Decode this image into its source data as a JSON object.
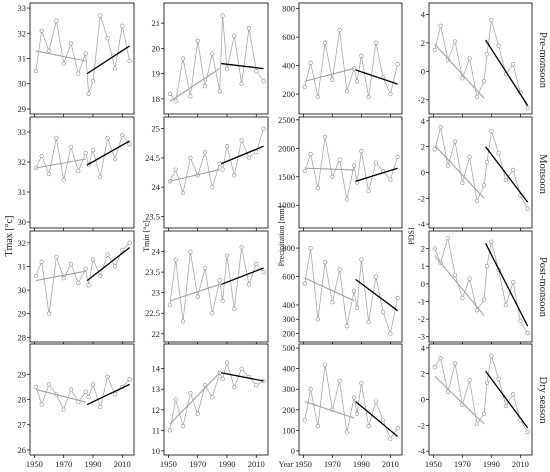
{
  "figure": {
    "x_axis_title": "Year",
    "y_axis_titles": [
      "Tmax [°c]",
      "Tmin [°c]",
      "Precipitation [mm]",
      "PDSI"
    ],
    "row_labels": [
      "Pre-monsoon",
      "Monsoon",
      "Post-monsoon",
      "Dry season"
    ],
    "x_ticks": [
      "1950",
      "1970",
      "1990",
      "2010"
    ]
  },
  "chart_data": [
    {
      "type": "line",
      "variable": "Tmax",
      "season": "Pre-monsoon",
      "x": [
        1951,
        1955,
        1960,
        1965,
        1970,
        1975,
        1980,
        1985,
        1987,
        1990,
        1995,
        2000,
        2005,
        2010,
        2015
      ],
      "y": [
        30.5,
        32.1,
        31.3,
        32.5,
        30.8,
        31.6,
        30.4,
        31.2,
        29.6,
        30.1,
        32.7,
        31.8,
        30.6,
        32.3,
        30.9
      ],
      "ylim": [
        28.8,
        33.2
      ],
      "yticks": [
        29,
        30,
        31,
        32,
        33
      ],
      "trend_pre": [
        [
          1951,
          31.3
        ],
        [
          1985,
          30.9
        ]
      ],
      "trend_post": [
        [
          1986,
          30.4
        ],
        [
          2015,
          31.5
        ]
      ],
      "ylabel": ""
    },
    {
      "type": "line",
      "variable": "Tmin",
      "season": "Pre-monsoon",
      "x": [
        1951,
        1955,
        1960,
        1965,
        1970,
        1975,
        1980,
        1985,
        1987,
        1990,
        1995,
        2000,
        2005,
        2010,
        2015
      ],
      "y": [
        18.2,
        17.9,
        19.6,
        18.1,
        20.3,
        18.5,
        19.8,
        18.3,
        21.3,
        19.2,
        20.5,
        18.6,
        20.8,
        19.1,
        18.7
      ],
      "ylim": [
        17.4,
        21.8
      ],
      "yticks": [
        18,
        19,
        20,
        21
      ],
      "trend_pre": [
        [
          1951,
          17.9
        ],
        [
          1985,
          19.2
        ]
      ],
      "trend_post": [
        [
          1986,
          19.4
        ],
        [
          2015,
          19.2
        ]
      ],
      "ylabel": ""
    },
    {
      "type": "line",
      "variable": "Precipitation",
      "season": "Pre-monsoon",
      "x": [
        1951,
        1955,
        1960,
        1965,
        1970,
        1975,
        1980,
        1985,
        1987,
        1990,
        1995,
        2000,
        2005,
        2010,
        2015
      ],
      "y": [
        250,
        420,
        180,
        560,
        300,
        650,
        220,
        380,
        290,
        470,
        180,
        560,
        320,
        200,
        410
      ],
      "ylim": [
        60,
        840
      ],
      "yticks": [
        200,
        400,
        600,
        800
      ],
      "trend_pre": [
        [
          1951,
          290
        ],
        [
          1985,
          380
        ]
      ],
      "trend_post": [
        [
          1986,
          370
        ],
        [
          2015,
          270
        ]
      ],
      "ylabel": ""
    },
    {
      "type": "line",
      "variable": "PDSI",
      "season": "Pre-monsoon",
      "x": [
        1951,
        1955,
        1960,
        1965,
        1970,
        1975,
        1980,
        1985,
        1987,
        1990,
        1995,
        2000,
        2005,
        2010,
        2015
      ],
      "y": [
        1.5,
        3.2,
        0.8,
        2.1,
        -0.5,
        0.9,
        -1.8,
        -0.7,
        1.2,
        3.6,
        1.8,
        -0.2,
        0.5,
        -1.5,
        -2.6
      ],
      "ylim": [
        -3.0,
        4.8
      ],
      "yticks": [
        -2,
        0,
        2,
        4
      ],
      "trend_pre": [
        [
          1951,
          1.9
        ],
        [
          1985,
          -1.9
        ]
      ],
      "trend_post": [
        [
          1986,
          2.2
        ],
        [
          2015,
          -2.4
        ]
      ],
      "ylabel": ""
    },
    {
      "type": "line",
      "variable": "Tmax",
      "season": "Monsoon",
      "x": [
        1951,
        1955,
        1960,
        1965,
        1970,
        1975,
        1980,
        1985,
        1987,
        1990,
        1995,
        2000,
        2005,
        2010,
        2015
      ],
      "y": [
        31.8,
        32.2,
        31.6,
        32.8,
        31.4,
        32.5,
        31.7,
        32.3,
        31.9,
        32.4,
        31.5,
        32.8,
        32.1,
        32.9,
        32.6
      ],
      "ylim": [
        29.8,
        33.5
      ],
      "yticks": [
        30,
        31,
        32,
        33
      ],
      "trend_pre": [
        [
          1951,
          31.8
        ],
        [
          1985,
          32.1
        ]
      ],
      "trend_post": [
        [
          1986,
          31.9
        ],
        [
          2015,
          32.7
        ]
      ],
      "ylabel": ""
    },
    {
      "type": "line",
      "variable": "Tmin",
      "season": "Monsoon",
      "x": [
        1951,
        1955,
        1960,
        1965,
        1970,
        1975,
        1980,
        1985,
        1987,
        1990,
        1995,
        2000,
        2005,
        2010,
        2015
      ],
      "y": [
        24.1,
        24.3,
        23.9,
        24.5,
        24.2,
        24.6,
        24.0,
        24.4,
        24.3,
        24.7,
        24.2,
        24.8,
        24.5,
        24.6,
        25.0
      ],
      "ylim": [
        23.3,
        25.2
      ],
      "yticks": [
        23.5,
        24.0,
        24.5,
        25.0
      ],
      "trend_pre": [
        [
          1951,
          24.1
        ],
        [
          1985,
          24.3
        ]
      ],
      "trend_post": [
        [
          1986,
          24.4
        ],
        [
          2015,
          24.7
        ]
      ],
      "ylabel": ""
    },
    {
      "type": "line",
      "variable": "Precipitation",
      "season": "Monsoon",
      "x": [
        1951,
        1955,
        1960,
        1965,
        1970,
        1975,
        1980,
        1985,
        1987,
        1990,
        1995,
        2000,
        2005,
        2010,
        2015
      ],
      "y": [
        1600,
        1900,
        1300,
        2200,
        1500,
        1800,
        1100,
        1700,
        1400,
        1950,
        1250,
        1750,
        1600,
        1450,
        1850
      ],
      "ylim": [
        600,
        2550
      ],
      "yticks": [
        1000,
        1500,
        2000,
        2500
      ],
      "trend_pre": [
        [
          1951,
          1650
        ],
        [
          1985,
          1620
        ]
      ],
      "trend_post": [
        [
          1986,
          1420
        ],
        [
          2015,
          1650
        ]
      ],
      "ylabel": ""
    },
    {
      "type": "line",
      "variable": "PDSI",
      "season": "Monsoon",
      "x": [
        1951,
        1955,
        1960,
        1965,
        1970,
        1975,
        1980,
        1985,
        1987,
        1990,
        1995,
        2000,
        2005,
        2010,
        2015
      ],
      "y": [
        1.8,
        3.5,
        0.5,
        2.4,
        -0.8,
        1.2,
        -2.2,
        -1.0,
        0.8,
        3.2,
        1.5,
        -0.6,
        0.2,
        -1.8,
        -2.8
      ],
      "ylim": [
        -4.3,
        4.3
      ],
      "yticks": [
        -4,
        -2,
        0,
        2,
        4
      ],
      "trend_pre": [
        [
          1951,
          2.1
        ],
        [
          1985,
          -2.0
        ]
      ],
      "trend_post": [
        [
          1986,
          2.0
        ],
        [
          2015,
          -2.3
        ]
      ],
      "ylabel": ""
    },
    {
      "type": "line",
      "variable": "Tmax",
      "season": "Post-monsoon",
      "x": [
        1951,
        1955,
        1960,
        1965,
        1970,
        1975,
        1980,
        1985,
        1987,
        1990,
        1995,
        2000,
        2005,
        2010,
        2015
      ],
      "y": [
        30.6,
        31.2,
        29.0,
        31.4,
        30.5,
        31.1,
        30.3,
        30.9,
        30.2,
        31.3,
        30.6,
        31.5,
        31.0,
        31.7,
        32.0
      ],
      "ylim": [
        27.8,
        32.5
      ],
      "yticks": [
        28,
        29,
        30,
        31,
        32
      ],
      "trend_pre": [
        [
          1951,
          30.4
        ],
        [
          1985,
          30.8
        ]
      ],
      "trend_post": [
        [
          1986,
          30.4
        ],
        [
          2015,
          31.8
        ]
      ],
      "ylabel": ""
    },
    {
      "type": "line",
      "variable": "Tmin",
      "season": "Post-monsoon",
      "x": [
        1951,
        1955,
        1960,
        1965,
        1970,
        1975,
        1980,
        1985,
        1987,
        1990,
        1995,
        2000,
        2005,
        2010,
        2015
      ],
      "y": [
        22.7,
        23.8,
        22.3,
        24.0,
        22.9,
        23.6,
        22.5,
        23.3,
        22.8,
        23.9,
        22.6,
        24.1,
        23.2,
        23.7,
        23.5
      ],
      "ylim": [
        21.8,
        24.5
      ],
      "yticks": [
        22.0,
        22.5,
        23.0,
        23.5,
        24.0
      ],
      "trend_pre": [
        [
          1951,
          22.8
        ],
        [
          1985,
          23.2
        ]
      ],
      "trend_post": [
        [
          1986,
          23.2
        ],
        [
          2015,
          23.6
        ]
      ],
      "ylabel": ""
    },
    {
      "type": "line",
      "variable": "Precipitation",
      "season": "Post-monsoon",
      "x": [
        1951,
        1955,
        1960,
        1965,
        1970,
        1975,
        1980,
        1985,
        1987,
        1990,
        1995,
        2000,
        2005,
        2010,
        2015
      ],
      "y": [
        550,
        800,
        300,
        700,
        420,
        650,
        250,
        500,
        380,
        720,
        280,
        600,
        350,
        200,
        450
      ],
      "ylim": [
        140,
        920
      ],
      "yticks": [
        200,
        300,
        400,
        600,
        800
      ],
      "trend_pre": [
        [
          1951,
          590
        ],
        [
          1985,
          430
        ]
      ],
      "trend_post": [
        [
          1986,
          580
        ],
        [
          2015,
          360
        ]
      ],
      "ylabel": ""
    },
    {
      "type": "line",
      "variable": "PDSI",
      "season": "Post-monsoon",
      "x": [
        1951,
        1955,
        1960,
        1965,
        1970,
        1975,
        1980,
        1985,
        1987,
        1990,
        1995,
        2000,
        2005,
        2010,
        2015
      ],
      "y": [
        2.0,
        1.2,
        2.6,
        0.5,
        -0.8,
        0.3,
        -1.5,
        -0.9,
        1.0,
        2.4,
        0.8,
        -1.2,
        0.1,
        -2.1,
        -2.8
      ],
      "ylim": [
        -3.3,
        3.0
      ],
      "yticks": [
        -3,
        -2,
        -1,
        0,
        1,
        2
      ],
      "trend_pre": [
        [
          1951,
          1.6
        ],
        [
          1985,
          -1.8
        ]
      ],
      "trend_post": [
        [
          1986,
          2.3
        ],
        [
          2015,
          -2.4
        ]
      ],
      "ylabel": ""
    },
    {
      "type": "line",
      "variable": "Tmax",
      "season": "Dry season",
      "x": [
        1951,
        1955,
        1960,
        1965,
        1970,
        1975,
        1980,
        1985,
        1987,
        1990,
        1995,
        2000,
        2005,
        2010,
        2015
      ],
      "y": [
        28.5,
        27.8,
        28.6,
        28.2,
        27.6,
        28.4,
        27.9,
        28.3,
        28.1,
        28.6,
        27.7,
        28.9,
        28.2,
        28.5,
        28.8
      ],
      "ylim": [
        25.8,
        30.2
      ],
      "yticks": [
        26,
        27,
        28,
        29
      ],
      "trend_pre": [
        [
          1951,
          28.4
        ],
        [
          1985,
          27.9
        ]
      ],
      "trend_post": [
        [
          1986,
          27.8
        ],
        [
          2015,
          28.6
        ]
      ],
      "ylabel": ""
    },
    {
      "type": "line",
      "variable": "Tmin",
      "season": "Dry season",
      "x": [
        1951,
        1955,
        1960,
        1965,
        1970,
        1975,
        1980,
        1985,
        1987,
        1990,
        1995,
        2000,
        2005,
        2010,
        2015
      ],
      "y": [
        11.0,
        12.5,
        11.2,
        12.8,
        11.8,
        13.2,
        12.6,
        13.8,
        13.5,
        14.3,
        13.1,
        14.0,
        13.6,
        13.2,
        13.4
      ],
      "ylim": [
        9.8,
        15.2
      ],
      "yticks": [
        10,
        11,
        12,
        13,
        14
      ],
      "trend_pre": [
        [
          1951,
          11.3
        ],
        [
          1985,
          13.8
        ]
      ],
      "trend_post": [
        [
          1986,
          13.8
        ],
        [
          2015,
          13.4
        ]
      ],
      "ylabel": ""
    },
    {
      "type": "line",
      "variable": "Precipitation",
      "season": "Dry season",
      "x": [
        1951,
        1955,
        1960,
        1965,
        1970,
        1975,
        1980,
        1985,
        1987,
        1990,
        1995,
        2000,
        2005,
        2010,
        2015
      ],
      "y": [
        150,
        300,
        120,
        420,
        200,
        340,
        90,
        260,
        180,
        330,
        120,
        240,
        150,
        60,
        110
      ],
      "ylim": [
        -20,
        520
      ],
      "yticks": [
        0,
        100,
        200,
        300,
        400,
        500
      ],
      "trend_pre": [
        [
          1951,
          240
        ],
        [
          1985,
          160
        ]
      ],
      "trend_post": [
        [
          1986,
          240
        ],
        [
          2015,
          70
        ]
      ],
      "ylabel": ""
    },
    {
      "type": "line",
      "variable": "PDSI",
      "season": "Dry season",
      "x": [
        1951,
        1955,
        1960,
        1965,
        1970,
        1975,
        1980,
        1985,
        1987,
        1990,
        1995,
        2000,
        2005,
        2010,
        2015
      ],
      "y": [
        2.5,
        3.2,
        0.6,
        2.8,
        -0.4,
        1.5,
        -1.9,
        -1.1,
        1.3,
        3.4,
        1.6,
        -0.5,
        0.4,
        -1.6,
        -2.5
      ],
      "ylim": [
        -4.3,
        4.3
      ],
      "yticks": [
        -4,
        -2,
        0,
        2,
        4
      ],
      "trend_pre": [
        [
          1951,
          1.8
        ],
        [
          1985,
          -1.9
        ]
      ],
      "trend_post": [
        [
          1986,
          2.2
        ],
        [
          2015,
          -2.2
        ]
      ],
      "ylabel": ""
    }
  ]
}
